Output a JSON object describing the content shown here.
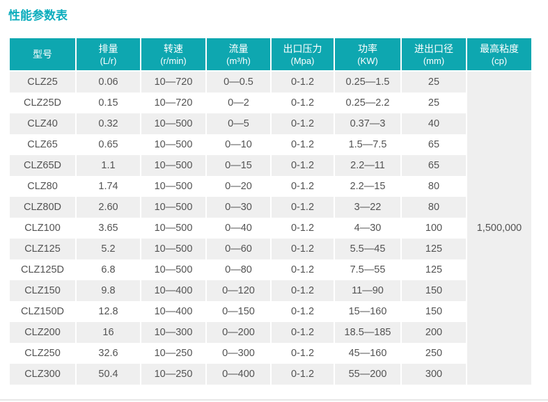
{
  "page": {
    "title": "性能参数表"
  },
  "colors": {
    "accent_teal": "#0ea7b0",
    "title_teal": "#0cadbd",
    "stripe_gray": "#efefef",
    "header_text": "#ffffff",
    "body_text": "#535353",
    "bottom_rule": "#e7e7e7"
  },
  "table": {
    "columns": [
      {
        "label": "型号",
        "unit": ""
      },
      {
        "label": "排量",
        "unit": "(L/r)"
      },
      {
        "label": "转速",
        "unit": "(r/min)"
      },
      {
        "label": "流量",
        "unit": "(m³/h)"
      },
      {
        "label": "出口压力",
        "unit": "(Mpa)"
      },
      {
        "label": "功率",
        "unit": "(KW)"
      },
      {
        "label": "进出口径",
        "unit": "(mm)"
      },
      {
        "label": "最高粘度",
        "unit": "(cp)"
      }
    ],
    "rows": [
      [
        "CLZ25",
        "0.06",
        "10—720",
        "0—0.5",
        "0-1.2",
        "0.25—1.5",
        "25"
      ],
      [
        "CLZ25D",
        "0.15",
        "10—720",
        "0—2",
        "0-1.2",
        "0.25—2.2",
        "25"
      ],
      [
        "CLZ40",
        "0.32",
        "10—500",
        "0—5",
        "0-1.2",
        "0.37—3",
        "40"
      ],
      [
        "CLZ65",
        "0.65",
        "10—500",
        "0—10",
        "0-1.2",
        "1.5—7.5",
        "65"
      ],
      [
        "CLZ65D",
        "1.1",
        "10—500",
        "0—15",
        "0-1.2",
        "2.2—11",
        "65"
      ],
      [
        "CLZ80",
        "1.74",
        "10—500",
        "0—20",
        "0-1.2",
        "2.2—15",
        "80"
      ],
      [
        "CLZ80D",
        "2.60",
        "10—500",
        "0—30",
        "0-1.2",
        "3—22",
        "80"
      ],
      [
        "CLZ100",
        "3.65",
        "10—500",
        "0—40",
        "0-1.2",
        "4—30",
        "100"
      ],
      [
        "CLZ125",
        "5.2",
        "10—500",
        "0—60",
        "0-1.2",
        "5.5—45",
        "125"
      ],
      [
        "CLZ125D",
        "6.8",
        "10—500",
        "0—80",
        "0-1.2",
        "7.5—55",
        "125"
      ],
      [
        "CLZ150",
        "9.8",
        "10—400",
        "0—120",
        "0-1.2",
        "11—90",
        "150"
      ],
      [
        "CLZ150D",
        "12.8",
        "10—400",
        "0—150",
        "0-1.2",
        "15—160",
        "150"
      ],
      [
        "CLZ200",
        "16",
        "10—300",
        "0—200",
        "0-1.2",
        "18.5—185",
        "200"
      ],
      [
        "CLZ250",
        "32.6",
        "10—250",
        "0—300",
        "0-1.2",
        "45—160",
        "250"
      ],
      [
        "CLZ300",
        "50.4",
        "10—250",
        "0—400",
        "0-1.2",
        "55—200",
        "300"
      ]
    ],
    "merged_viscosity": "1,500,000"
  }
}
